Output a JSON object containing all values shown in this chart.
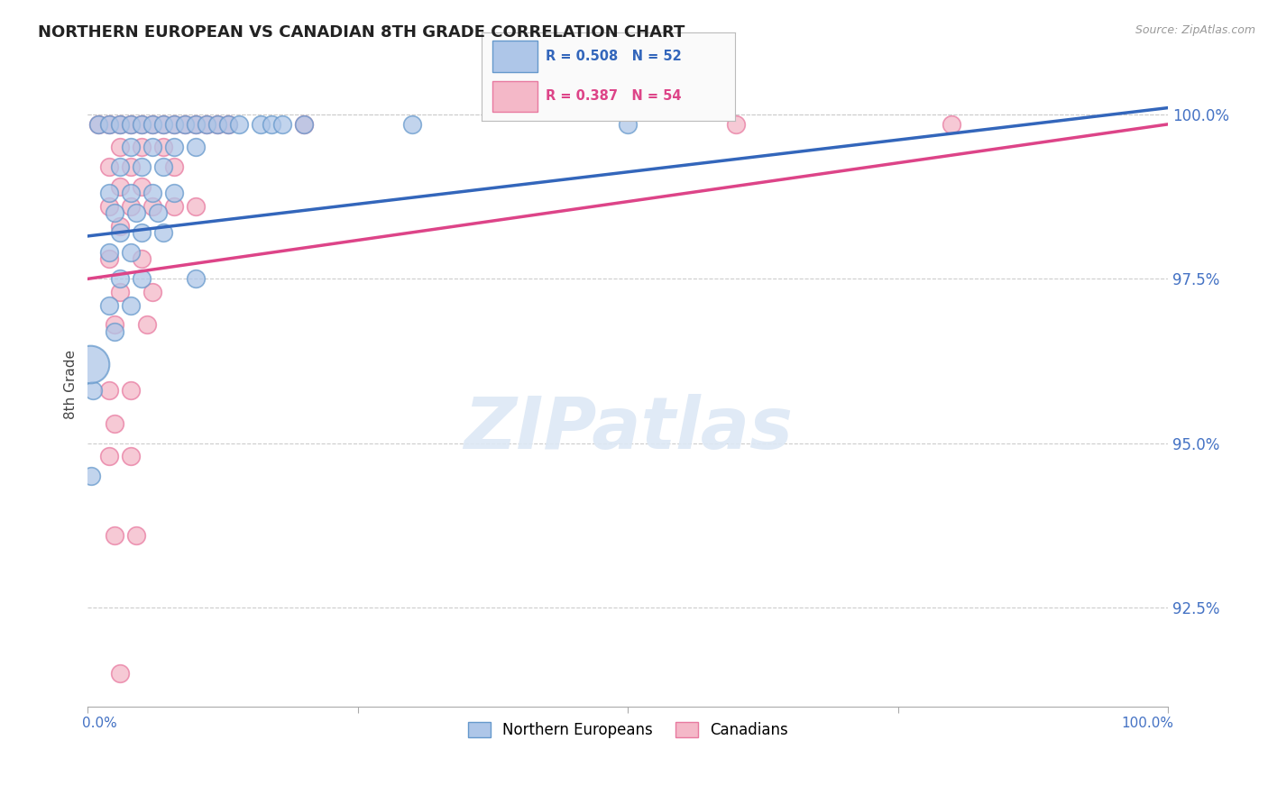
{
  "title": "NORTHERN EUROPEAN VS CANADIAN 8TH GRADE CORRELATION CHART",
  "source": "Source: ZipAtlas.com",
  "ylabel": "8th Grade",
  "legend_labels": [
    "Northern Europeans",
    "Canadians"
  ],
  "blue_R": 0.508,
  "blue_N": 52,
  "pink_R": 0.387,
  "pink_N": 54,
  "blue_color": "#aec6e8",
  "pink_color": "#f4b8c8",
  "blue_edge_color": "#6699cc",
  "pink_edge_color": "#e87aa0",
  "blue_line_color": "#3366bb",
  "pink_line_color": "#dd4488",
  "blue_scatter": [
    [
      1.0,
      99.85
    ],
    [
      2.0,
      99.85
    ],
    [
      3.0,
      99.85
    ],
    [
      4.0,
      99.85
    ],
    [
      5.0,
      99.85
    ],
    [
      6.0,
      99.85
    ],
    [
      7.0,
      99.85
    ],
    [
      8.0,
      99.85
    ],
    [
      9.0,
      99.85
    ],
    [
      10.0,
      99.85
    ],
    [
      11.0,
      99.85
    ],
    [
      12.0,
      99.85
    ],
    [
      13.0,
      99.85
    ],
    [
      14.0,
      99.85
    ],
    [
      16.0,
      99.85
    ],
    [
      17.0,
      99.85
    ],
    [
      18.0,
      99.85
    ],
    [
      20.0,
      99.85
    ],
    [
      4.0,
      99.5
    ],
    [
      6.0,
      99.5
    ],
    [
      8.0,
      99.5
    ],
    [
      10.0,
      99.5
    ],
    [
      3.0,
      99.2
    ],
    [
      5.0,
      99.2
    ],
    [
      7.0,
      99.2
    ],
    [
      2.0,
      98.8
    ],
    [
      4.0,
      98.8
    ],
    [
      6.0,
      98.8
    ],
    [
      8.0,
      98.8
    ],
    [
      2.5,
      98.5
    ],
    [
      4.5,
      98.5
    ],
    [
      6.5,
      98.5
    ],
    [
      3.0,
      98.2
    ],
    [
      5.0,
      98.2
    ],
    [
      7.0,
      98.2
    ],
    [
      2.0,
      97.9
    ],
    [
      4.0,
      97.9
    ],
    [
      3.0,
      97.5
    ],
    [
      5.0,
      97.5
    ],
    [
      2.0,
      97.1
    ],
    [
      4.0,
      97.1
    ],
    [
      10.0,
      97.5
    ],
    [
      2.5,
      96.7
    ],
    [
      0.5,
      95.8
    ],
    [
      30.0,
      99.85
    ],
    [
      50.0,
      99.85
    ],
    [
      0.3,
      94.5
    ]
  ],
  "pink_scatter": [
    [
      1.0,
      99.85
    ],
    [
      2.0,
      99.85
    ],
    [
      3.0,
      99.85
    ],
    [
      4.0,
      99.85
    ],
    [
      5.0,
      99.85
    ],
    [
      6.0,
      99.85
    ],
    [
      7.0,
      99.85
    ],
    [
      8.0,
      99.85
    ],
    [
      9.0,
      99.85
    ],
    [
      10.0,
      99.85
    ],
    [
      11.0,
      99.85
    ],
    [
      12.0,
      99.85
    ],
    [
      13.0,
      99.85
    ],
    [
      3.0,
      99.5
    ],
    [
      5.0,
      99.5
    ],
    [
      7.0,
      99.5
    ],
    [
      2.0,
      99.2
    ],
    [
      4.0,
      99.2
    ],
    [
      8.0,
      99.2
    ],
    [
      3.0,
      98.9
    ],
    [
      5.0,
      98.9
    ],
    [
      2.0,
      98.6
    ],
    [
      4.0,
      98.6
    ],
    [
      6.0,
      98.6
    ],
    [
      8.0,
      98.6
    ],
    [
      3.0,
      98.3
    ],
    [
      10.0,
      98.6
    ],
    [
      2.0,
      97.8
    ],
    [
      5.0,
      97.8
    ],
    [
      3.0,
      97.3
    ],
    [
      6.0,
      97.3
    ],
    [
      2.5,
      96.8
    ],
    [
      5.5,
      96.8
    ],
    [
      2.0,
      95.8
    ],
    [
      4.0,
      95.8
    ],
    [
      2.5,
      95.3
    ],
    [
      2.0,
      94.8
    ],
    [
      4.0,
      94.8
    ],
    [
      2.5,
      93.6
    ],
    [
      4.5,
      93.6
    ],
    [
      3.0,
      91.5
    ],
    [
      20.0,
      99.85
    ],
    [
      60.0,
      99.85
    ],
    [
      80.0,
      99.85
    ]
  ],
  "blue_large_dot": [
    0.2,
    96.2
  ],
  "xlim": [
    0,
    100
  ],
  "ylim": [
    91.0,
    100.8
  ],
  "ytick_values": [
    92.5,
    95.0,
    97.5,
    100.0
  ],
  "watermark_text": "ZIPatlas",
  "watermark_color": "#dde8f5",
  "background_color": "#ffffff",
  "grid_color": "#cccccc",
  "tick_label_color": "#4472c4"
}
